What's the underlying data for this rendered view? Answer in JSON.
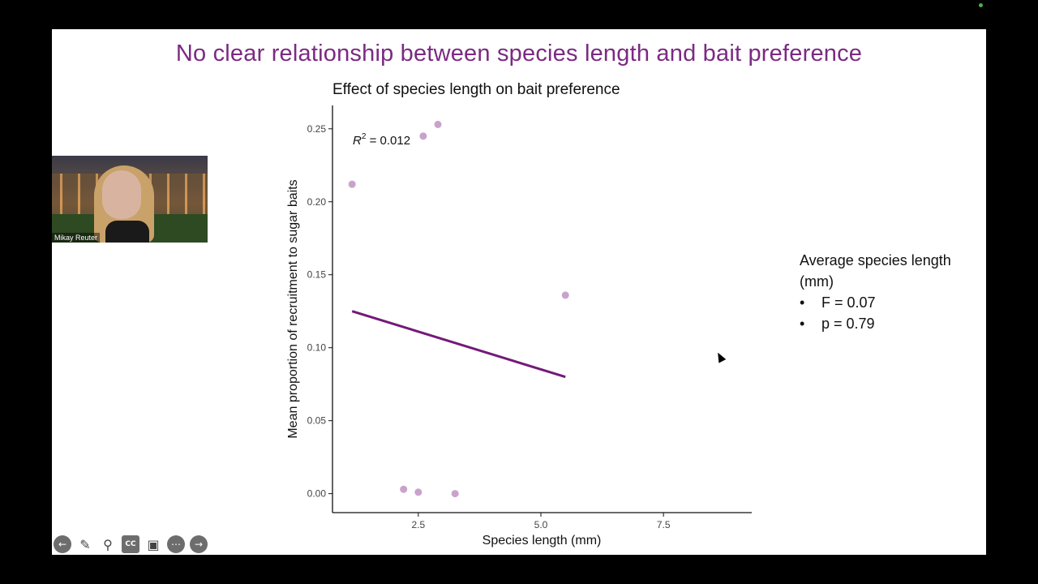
{
  "slide": {
    "title": "No clear relationship between species length and bait preference"
  },
  "legend": {
    "heading": "Average species length (mm)",
    "stats": [
      "F = 0.07",
      "p = 0.79"
    ]
  },
  "webcam": {
    "name": "Mikay Reuter"
  },
  "toolbar": {
    "icons": [
      "back-arrow-icon",
      "pen-icon",
      "zoom-icon",
      "captions-icon",
      "camera-icon",
      "more-icon",
      "forward-arrow-icon"
    ],
    "cc_label": "CC"
  },
  "chart_data": {
    "type": "scatter",
    "title": "Effect of species length on bait preference",
    "xlabel": "Species length (mm)",
    "ylabel": "Mean proportion of recruitment to sugar baits",
    "xlim": [
      0.75,
      9.3
    ],
    "ylim": [
      -0.013,
      0.266
    ],
    "xticks": [
      2.5,
      5.0,
      7.5
    ],
    "yticks": [
      0.0,
      0.05,
      0.1,
      0.15,
      0.2,
      0.25
    ],
    "xtick_labels": [
      "2.5",
      "5.0",
      "7.5"
    ],
    "ytick_labels": [
      "0.00",
      "0.05",
      "0.10",
      "0.15",
      "0.20",
      "0.25"
    ],
    "annotation": {
      "label": "R",
      "sup": "2",
      "value": " = 0.012"
    },
    "point_color": "#c9a3cc",
    "line_color": "#731a78",
    "points": [
      {
        "x": 1.15,
        "y": 0.212
      },
      {
        "x": 2.2,
        "y": 0.003
      },
      {
        "x": 2.5,
        "y": 0.001
      },
      {
        "x": 2.6,
        "y": 0.245
      },
      {
        "x": 2.9,
        "y": 0.253
      },
      {
        "x": 3.25,
        "y": 0.0
      },
      {
        "x": 5.5,
        "y": 0.136
      }
    ],
    "fit_line": {
      "x": [
        1.15,
        5.5
      ],
      "y": [
        0.125,
        0.08
      ]
    },
    "grid": false
  }
}
